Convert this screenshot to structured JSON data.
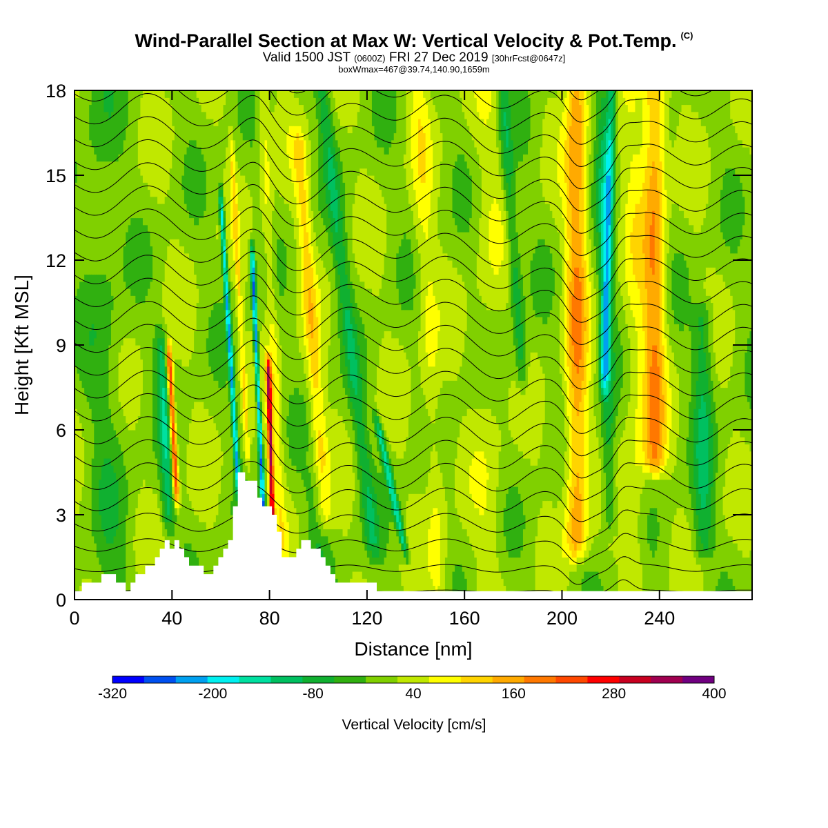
{
  "header": {
    "title": "Wind-Parallel Section at Max W: Vertical Velocity & Pot.Temp.",
    "copyright": "(C)",
    "valid_prefix": "Valid 1500 JST",
    "valid_zulu": "(0600Z)",
    "valid_date": "FRI 27 Dec 2019",
    "forecast": "[30hrFcst@0647z]",
    "box_info": "boxWmax=467@39.74,140.90,1659m"
  },
  "chart_data": {
    "type": "heatmap",
    "title": "Wind-Parallel Section at Max W: Vertical Velocity & Pot.Temp.",
    "xlabel": "Distance [nm]",
    "ylabel": "Height [Kft MSL]",
    "xlim": [
      0,
      278
    ],
    "ylim": [
      0,
      18
    ],
    "x_ticks": [
      "0",
      "40",
      "80",
      "120",
      "160",
      "200",
      "240"
    ],
    "x_tick_values": [
      0,
      40,
      80,
      120,
      160,
      200,
      240
    ],
    "y_ticks": [
      "0",
      "3",
      "6",
      "9",
      "12",
      "15",
      "18"
    ],
    "y_tick_values": [
      0,
      3,
      6,
      9,
      12,
      15,
      18
    ],
    "colorbar": {
      "label": "Vertical Velocity [cm/s]",
      "tick_labels": [
        "-320",
        "-200",
        "-80",
        "40",
        "160",
        "280",
        "400"
      ],
      "tick_values": [
        -320,
        -200,
        -80,
        40,
        160,
        280,
        400
      ],
      "colors": [
        "#0000ff",
        "#0050f0",
        "#00a0f0",
        "#00f0f0",
        "#00e0a0",
        "#00c060",
        "#10b030",
        "#30b010",
        "#80d000",
        "#c0e800",
        "#ffff00",
        "#ffd400",
        "#ffaa00",
        "#ff7800",
        "#ff4800",
        "#ff0000",
        "#c80020",
        "#a00050",
        "#700080"
      ]
    },
    "terrain_nm_kft": [
      [
        0,
        0.3
      ],
      [
        3,
        0.3
      ],
      [
        3,
        0.6
      ],
      [
        11,
        0.6
      ],
      [
        11,
        0.9
      ],
      [
        17,
        0.9
      ],
      [
        17,
        0.6
      ],
      [
        21,
        0.6
      ],
      [
        21,
        0.3
      ],
      [
        23,
        0.3
      ],
      [
        23,
        0.6
      ],
      [
        25,
        0.6
      ],
      [
        25,
        0.9
      ],
      [
        29,
        0.9
      ],
      [
        29,
        1.2
      ],
      [
        33,
        1.2
      ],
      [
        33,
        1.5
      ],
      [
        35,
        1.5
      ],
      [
        35,
        1.8
      ],
      [
        37,
        1.8
      ],
      [
        37,
        2.1
      ],
      [
        39,
        2.1
      ],
      [
        39,
        1.8
      ],
      [
        41,
        1.8
      ],
      [
        41,
        2.1
      ],
      [
        43,
        2.1
      ],
      [
        43,
        1.8
      ],
      [
        45,
        1.8
      ],
      [
        45,
        1.5
      ],
      [
        47,
        1.5
      ],
      [
        47,
        1.2
      ],
      [
        53,
        1.2
      ],
      [
        53,
        0.9
      ],
      [
        57,
        0.9
      ],
      [
        57,
        1.2
      ],
      [
        59,
        1.2
      ],
      [
        59,
        1.5
      ],
      [
        61,
        1.5
      ],
      [
        61,
        1.8
      ],
      [
        63,
        1.8
      ],
      [
        63,
        2.1
      ],
      [
        65,
        2.1
      ],
      [
        65,
        3.3
      ],
      [
        67,
        3.3
      ],
      [
        67,
        4.5
      ],
      [
        70,
        4.5
      ],
      [
        70,
        4.2
      ],
      [
        75,
        4.2
      ],
      [
        75,
        3.6
      ],
      [
        77,
        3.6
      ],
      [
        77,
        3.3
      ],
      [
        81,
        3.3
      ],
      [
        81,
        3.0
      ],
      [
        83,
        3.0
      ],
      [
        83,
        2.4
      ],
      [
        85,
        2.4
      ],
      [
        85,
        1.5
      ],
      [
        91,
        1.5
      ],
      [
        91,
        1.8
      ],
      [
        93,
        1.8
      ],
      [
        93,
        2.1
      ],
      [
        97,
        2.1
      ],
      [
        97,
        1.8
      ],
      [
        101,
        1.8
      ],
      [
        101,
        1.5
      ],
      [
        103,
        1.5
      ],
      [
        103,
        1.2
      ],
      [
        105,
        1.2
      ],
      [
        105,
        0.9
      ],
      [
        107,
        0.9
      ],
      [
        107,
        0.6
      ],
      [
        124,
        0.6
      ],
      [
        124,
        0.3
      ],
      [
        278,
        0.3
      ]
    ],
    "series": [
      {
        "name": "Vertical Velocity [cm/s]"
      },
      {
        "name": "Pot.Temp."
      }
    ]
  }
}
